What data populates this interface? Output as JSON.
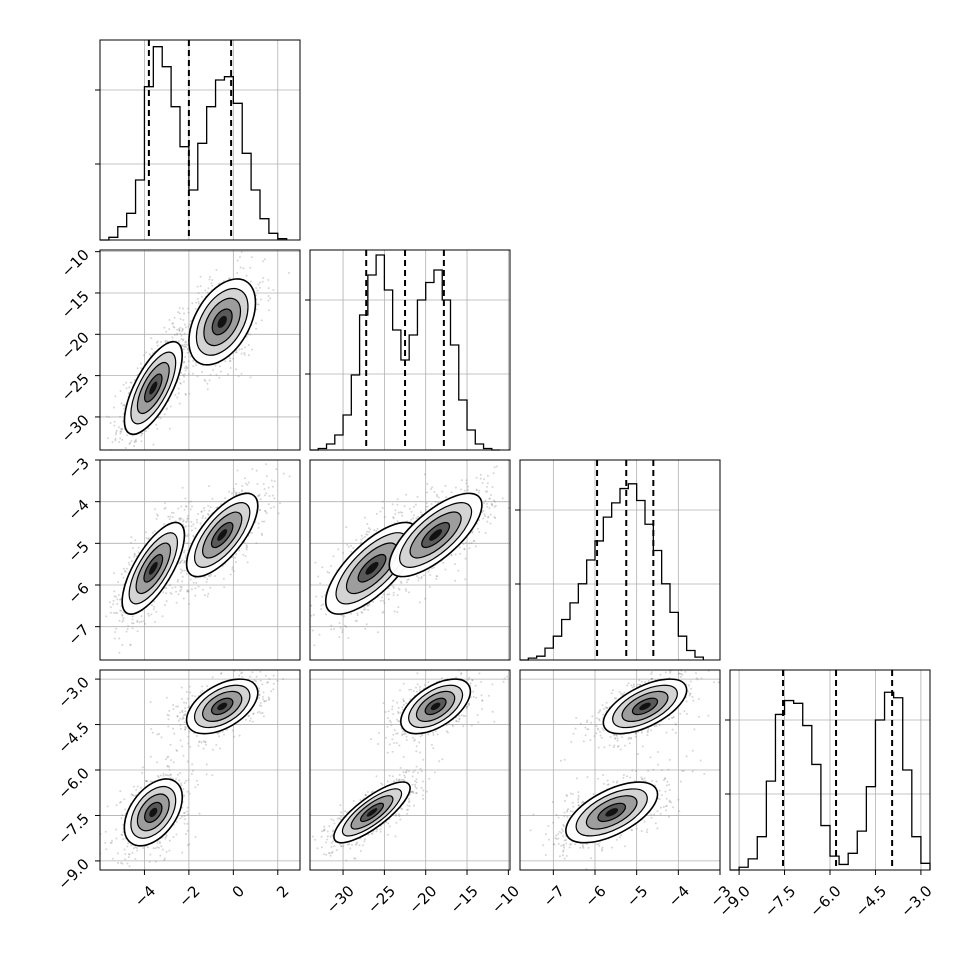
{
  "chart_data": {
    "type": "corner",
    "dims": 4,
    "histograms": [
      {
        "var": 0,
        "edges": [
          -6,
          -5.6,
          -5.2,
          -4.8,
          -4.4,
          -4.0,
          -3.6,
          -3.2,
          -2.8,
          -2.4,
          -2.0,
          -1.6,
          -1.2,
          -0.8,
          -0.4,
          0.0,
          0.4,
          0.8,
          1.2,
          1.6,
          2.0,
          2.4
        ],
        "counts": [
          0,
          4,
          20,
          40,
          90,
          230,
          290,
          260,
          200,
          140,
          75,
          145,
          200,
          240,
          245,
          205,
          130,
          75,
          32,
          10,
          2
        ],
        "quantiles": [
          -3.8,
          -2.0,
          -0.1
        ],
        "xlim": [
          -6,
          3
        ],
        "ylim": [
          0,
          300
        ]
      },
      {
        "var": 1,
        "edges": [
          -34,
          -33,
          -32,
          -31,
          -30,
          -29,
          -28,
          -27,
          -26,
          -25,
          -24,
          -23,
          -22,
          -21,
          -20,
          -19,
          -18,
          -17,
          -16,
          -15,
          -14,
          -13,
          -12,
          -11
        ],
        "counts": [
          0,
          3,
          12,
          30,
          70,
          150,
          270,
          350,
          390,
          320,
          240,
          180,
          230,
          300,
          335,
          360,
          300,
          210,
          100,
          40,
          12,
          3,
          0
        ],
        "quantiles": [
          -27.2,
          -22.5,
          -17.8
        ],
        "xlim": [
          -34,
          -9.8
        ],
        "ylim": [
          0,
          400
        ]
      },
      {
        "var": 2,
        "edges": [
          -7.8,
          -7.6,
          -7.4,
          -7.2,
          -7.0,
          -6.8,
          -6.6,
          -6.4,
          -6.2,
          -6.0,
          -5.8,
          -5.6,
          -5.4,
          -5.2,
          -5.0,
          -4.8,
          -4.6,
          -4.4,
          -4.2,
          -4.0,
          -3.8,
          -3.6,
          -3.4
        ],
        "counts": [
          0,
          4,
          8,
          25,
          50,
          85,
          120,
          160,
          210,
          250,
          300,
          330,
          360,
          370,
          335,
          285,
          230,
          160,
          100,
          50,
          20,
          6
        ],
        "quantiles": [
          -5.95,
          -5.25,
          -4.6
        ],
        "xlim": [
          -7.8,
          -3.0
        ],
        "ylim": [
          0,
          420
        ]
      },
      {
        "var": 3,
        "edges": [
          -9.3,
          -9.0,
          -8.7,
          -8.4,
          -8.1,
          -7.8,
          -7.5,
          -7.2,
          -6.9,
          -6.6,
          -6.3,
          -6.0,
          -5.7,
          -5.4,
          -5.1,
          -4.8,
          -4.5,
          -4.2,
          -3.9,
          -3.6,
          -3.3,
          -3.0,
          -2.7
        ],
        "counts": [
          0,
          5,
          20,
          60,
          160,
          280,
          305,
          300,
          260,
          190,
          80,
          25,
          10,
          30,
          70,
          150,
          270,
          320,
          310,
          180,
          60,
          12
        ],
        "quantiles": [
          -7.55,
          -5.8,
          -3.95
        ],
        "xlim": [
          -9.3,
          -2.7
        ],
        "ylim": [
          0,
          360
        ]
      }
    ],
    "pairs": [
      {
        "x": 0,
        "y": 1,
        "clusters": [
          {
            "mean": [
              -3.6,
              -26.5
            ],
            "sd": [
              0.65,
              2.8
            ],
            "rho": 0.7
          },
          {
            "mean": [
              -0.5,
              -18.5
            ],
            "sd": [
              0.75,
              2.6
            ],
            "rho": 0.45
          }
        ]
      },
      {
        "x": 0,
        "y": 2,
        "clusters": [
          {
            "mean": [
              -3.6,
              -5.6
            ],
            "sd": [
              0.7,
              0.55
            ],
            "rho": 0.72
          },
          {
            "mean": [
              -0.5,
              -4.8
            ],
            "sd": [
              0.8,
              0.5
            ],
            "rho": 0.7
          }
        ]
      },
      {
        "x": 1,
        "y": 2,
        "clusters": [
          {
            "mean": [
              -26.5,
              -5.6
            ],
            "sd": [
              2.8,
              0.55
            ],
            "rho": 0.72
          },
          {
            "mean": [
              -18.8,
              -4.8
            ],
            "sd": [
              2.8,
              0.5
            ],
            "rho": 0.72
          }
        ]
      },
      {
        "x": 0,
        "y": 3,
        "clusters": [
          {
            "mean": [
              -3.6,
              -7.4
            ],
            "sd": [
              0.65,
              0.55
            ],
            "rho": 0.45
          },
          {
            "mean": [
              -0.5,
              -3.9
            ],
            "sd": [
              0.8,
              0.45
            ],
            "rho": 0.5
          }
        ]
      },
      {
        "x": 1,
        "y": 3,
        "clusters": [
          {
            "mean": [
              -26.5,
              -7.4
            ],
            "sd": [
              2.3,
              0.5
            ],
            "rho": 0.8
          },
          {
            "mean": [
              -18.8,
              -3.9
            ],
            "sd": [
              2.1,
              0.45
            ],
            "rho": 0.55
          }
        ]
      },
      {
        "x": 2,
        "y": 3,
        "clusters": [
          {
            "mean": [
              -5.6,
              -7.4
            ],
            "sd": [
              0.55,
              0.5
            ],
            "rho": 0.6
          },
          {
            "mean": [
              -4.8,
              -3.9
            ],
            "sd": [
              0.5,
              0.45
            ],
            "rho": 0.6
          }
        ]
      }
    ],
    "axes": [
      {
        "var": 0,
        "lim": [
          -6,
          3
        ],
        "ticks": [
          -4,
          -2,
          0,
          2
        ],
        "tick_labels": [
          "−4",
          "−2",
          "0",
          "2"
        ]
      },
      {
        "var": 1,
        "lim": [
          -34,
          -9.8
        ],
        "ticks": [
          -30,
          -25,
          -20,
          -15,
          -10
        ],
        "tick_labels": [
          "−30",
          "−25",
          "−20",
          "−15",
          "−10"
        ]
      },
      {
        "var": 2,
        "lim": [
          -7.8,
          -3.0
        ],
        "ticks": [
          -7,
          -6,
          -5,
          -4,
          -3
        ],
        "tick_labels": [
          "−7",
          "−6",
          "−5",
          "−4",
          "−3"
        ]
      },
      {
        "var": 3,
        "lim": [
          -9.3,
          -2.7
        ],
        "ticks": [
          -9.0,
          -7.5,
          -6.0,
          -4.5,
          -3.0
        ],
        "tick_labels": [
          "−9.0",
          "−7.5",
          "−6.0",
          "−4.5",
          "−3.0"
        ]
      }
    ],
    "grid": true,
    "colors": {
      "histogram": "#000000",
      "quantile": "#000000",
      "points": "#8a8a8a",
      "contour": "#000000",
      "grid": "#b0b0b0"
    }
  }
}
